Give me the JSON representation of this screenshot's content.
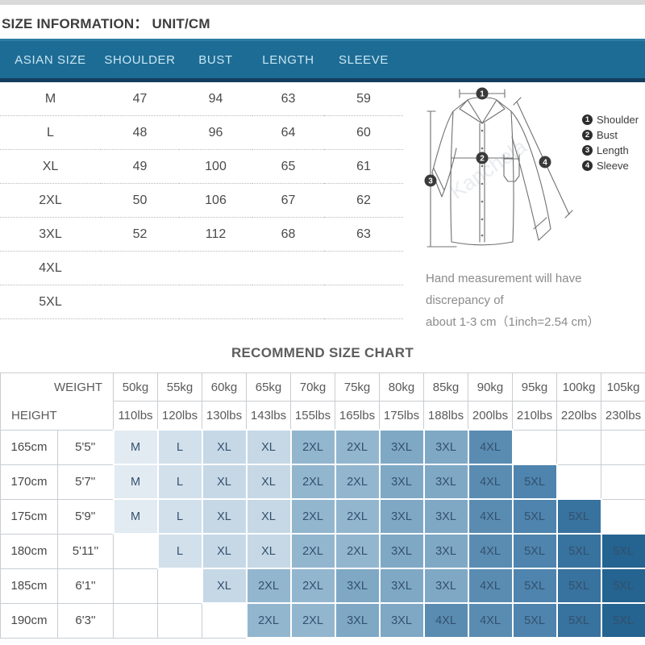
{
  "colors": {
    "header_bg": "#1d6c95",
    "header_text": "#c9e7f3",
    "header_top_line": "#2e7ea3",
    "header_bottom_line": "#133d5e",
    "grid_line": "#c9cdd1",
    "shades": {
      "m": "#e2ebf2",
      "l": "#d2e0ec",
      "xl": "#c6d8e6",
      "2xl": "#93b6cf",
      "3xl": "#7fa8c5",
      "4xl": "#5a8cb2",
      "5xl": "#4e84ad",
      "5xl_d": "#38729e",
      "5xl_dd": "#256390"
    }
  },
  "size_info": {
    "title": "SIZE INFORMATION：  UNIT/CM",
    "columns": [
      "ASIAN SIZE",
      "SHOULDER",
      "BUST",
      "LENGTH",
      "SLEEVE"
    ],
    "rows": [
      [
        "M",
        "47",
        "94",
        "63",
        "59"
      ],
      [
        "L",
        "48",
        "96",
        "64",
        "60"
      ],
      [
        "XL",
        "49",
        "100",
        "65",
        "61"
      ],
      [
        "2XL",
        "50",
        "106",
        "67",
        "62"
      ],
      [
        "3XL",
        "52",
        "112",
        "68",
        "63"
      ],
      [
        "4XL",
        "",
        "",
        "",
        ""
      ],
      [
        "5XL",
        "",
        "",
        "",
        ""
      ]
    ]
  },
  "diagram": {
    "points": [
      "1",
      "2",
      "3",
      "4"
    ],
    "legend": [
      {
        "num": "1",
        "label": "Shoulder"
      },
      {
        "num": "2",
        "label": "Bust"
      },
      {
        "num": "3",
        "label": "Length"
      },
      {
        "num": "4",
        "label": "Sleeve"
      }
    ],
    "watermark": "Kanchela",
    "note_line1": "Hand measurement will have discrepancy of",
    "note_line2": "about 1-3 cm（1inch=2.54 cm）"
  },
  "recommend_chart": {
    "title": "RECOMMEND SIZE CHART",
    "weight_label": "WEIGHT",
    "height_label": "HEIGHT",
    "weights_kg": [
      "50kg",
      "55kg",
      "60kg",
      "65kg",
      "70kg",
      "75kg",
      "80kg",
      "85kg",
      "90kg",
      "95kg",
      "100kg",
      "105kg"
    ],
    "weights_lbs": [
      "110lbs",
      "120lbs",
      "130lbs",
      "143lbs",
      "155lbs",
      "165lbs",
      "175lbs",
      "188lbs",
      "200lbs",
      "210lbs",
      "220lbs",
      "230lbs"
    ],
    "rows": [
      {
        "height_cm": "165cm",
        "height_ft": "5'5''",
        "cells": [
          [
            "M",
            "m"
          ],
          [
            "L",
            "l"
          ],
          [
            "XL",
            "xl"
          ],
          [
            "XL",
            "xl"
          ],
          [
            "2XL",
            "2xl"
          ],
          [
            "2XL",
            "2xl"
          ],
          [
            "3XL",
            "3xl"
          ],
          [
            "3XL",
            "3xl"
          ],
          [
            "4XL",
            "4xl"
          ],
          [
            "",
            ""
          ],
          [
            "",
            ""
          ],
          [
            "",
            ""
          ]
        ]
      },
      {
        "height_cm": "170cm",
        "height_ft": "5'7''",
        "cells": [
          [
            "M",
            "m"
          ],
          [
            "L",
            "l"
          ],
          [
            "XL",
            "xl"
          ],
          [
            "XL",
            "xl"
          ],
          [
            "2XL",
            "2xl"
          ],
          [
            "2XL",
            "2xl"
          ],
          [
            "3XL",
            "3xl"
          ],
          [
            "3XL",
            "3xl"
          ],
          [
            "4XL",
            "4xl"
          ],
          [
            "5XL",
            "5xl"
          ],
          [
            "",
            ""
          ],
          [
            "",
            ""
          ]
        ]
      },
      {
        "height_cm": "175cm",
        "height_ft": "5'9''",
        "cells": [
          [
            "M",
            "m"
          ],
          [
            "L",
            "l"
          ],
          [
            "XL",
            "xl"
          ],
          [
            "XL",
            "xl"
          ],
          [
            "2XL",
            "2xl"
          ],
          [
            "2XL",
            "2xl"
          ],
          [
            "3XL",
            "3xl"
          ],
          [
            "3XL",
            "3xl"
          ],
          [
            "4XL",
            "4xl"
          ],
          [
            "5XL",
            "5xl"
          ],
          [
            "5XL",
            "5xl_d"
          ],
          [
            "",
            ""
          ]
        ]
      },
      {
        "height_cm": "180cm",
        "height_ft": "5'11''",
        "cells": [
          [
            "",
            ""
          ],
          [
            "L",
            "l"
          ],
          [
            "XL",
            "xl"
          ],
          [
            "XL",
            "xl"
          ],
          [
            "2XL",
            "2xl"
          ],
          [
            "2XL",
            "2xl"
          ],
          [
            "3XL",
            "3xl"
          ],
          [
            "3XL",
            "3xl"
          ],
          [
            "4XL",
            "4xl"
          ],
          [
            "5XL",
            "5xl"
          ],
          [
            "5XL",
            "5xl_d"
          ],
          [
            "5XL",
            "5xl_dd"
          ]
        ]
      },
      {
        "height_cm": "185cm",
        "height_ft": "6'1''",
        "cells": [
          [
            "",
            ""
          ],
          [
            "",
            ""
          ],
          [
            "XL",
            "xl"
          ],
          [
            "2XL",
            "2xl"
          ],
          [
            "2XL",
            "2xl"
          ],
          [
            "3XL",
            "3xl"
          ],
          [
            "3XL",
            "3xl"
          ],
          [
            "3XL",
            "3xl"
          ],
          [
            "4XL",
            "4xl"
          ],
          [
            "5XL",
            "5xl"
          ],
          [
            "5XL",
            "5xl_d"
          ],
          [
            "5XL",
            "5xl_dd"
          ]
        ]
      },
      {
        "height_cm": "190cm",
        "height_ft": "6'3''",
        "cells": [
          [
            "",
            ""
          ],
          [
            "",
            ""
          ],
          [
            "",
            ""
          ],
          [
            "2XL",
            "2xl"
          ],
          [
            "2XL",
            "2xl"
          ],
          [
            "3XL",
            "3xl"
          ],
          [
            "3XL",
            "3xl"
          ],
          [
            "4XL",
            "4xl"
          ],
          [
            "4XL",
            "4xl"
          ],
          [
            "5XL",
            "5xl"
          ],
          [
            "5XL",
            "5xl_d"
          ],
          [
            "5XL",
            "5xl_dd"
          ]
        ]
      }
    ]
  }
}
